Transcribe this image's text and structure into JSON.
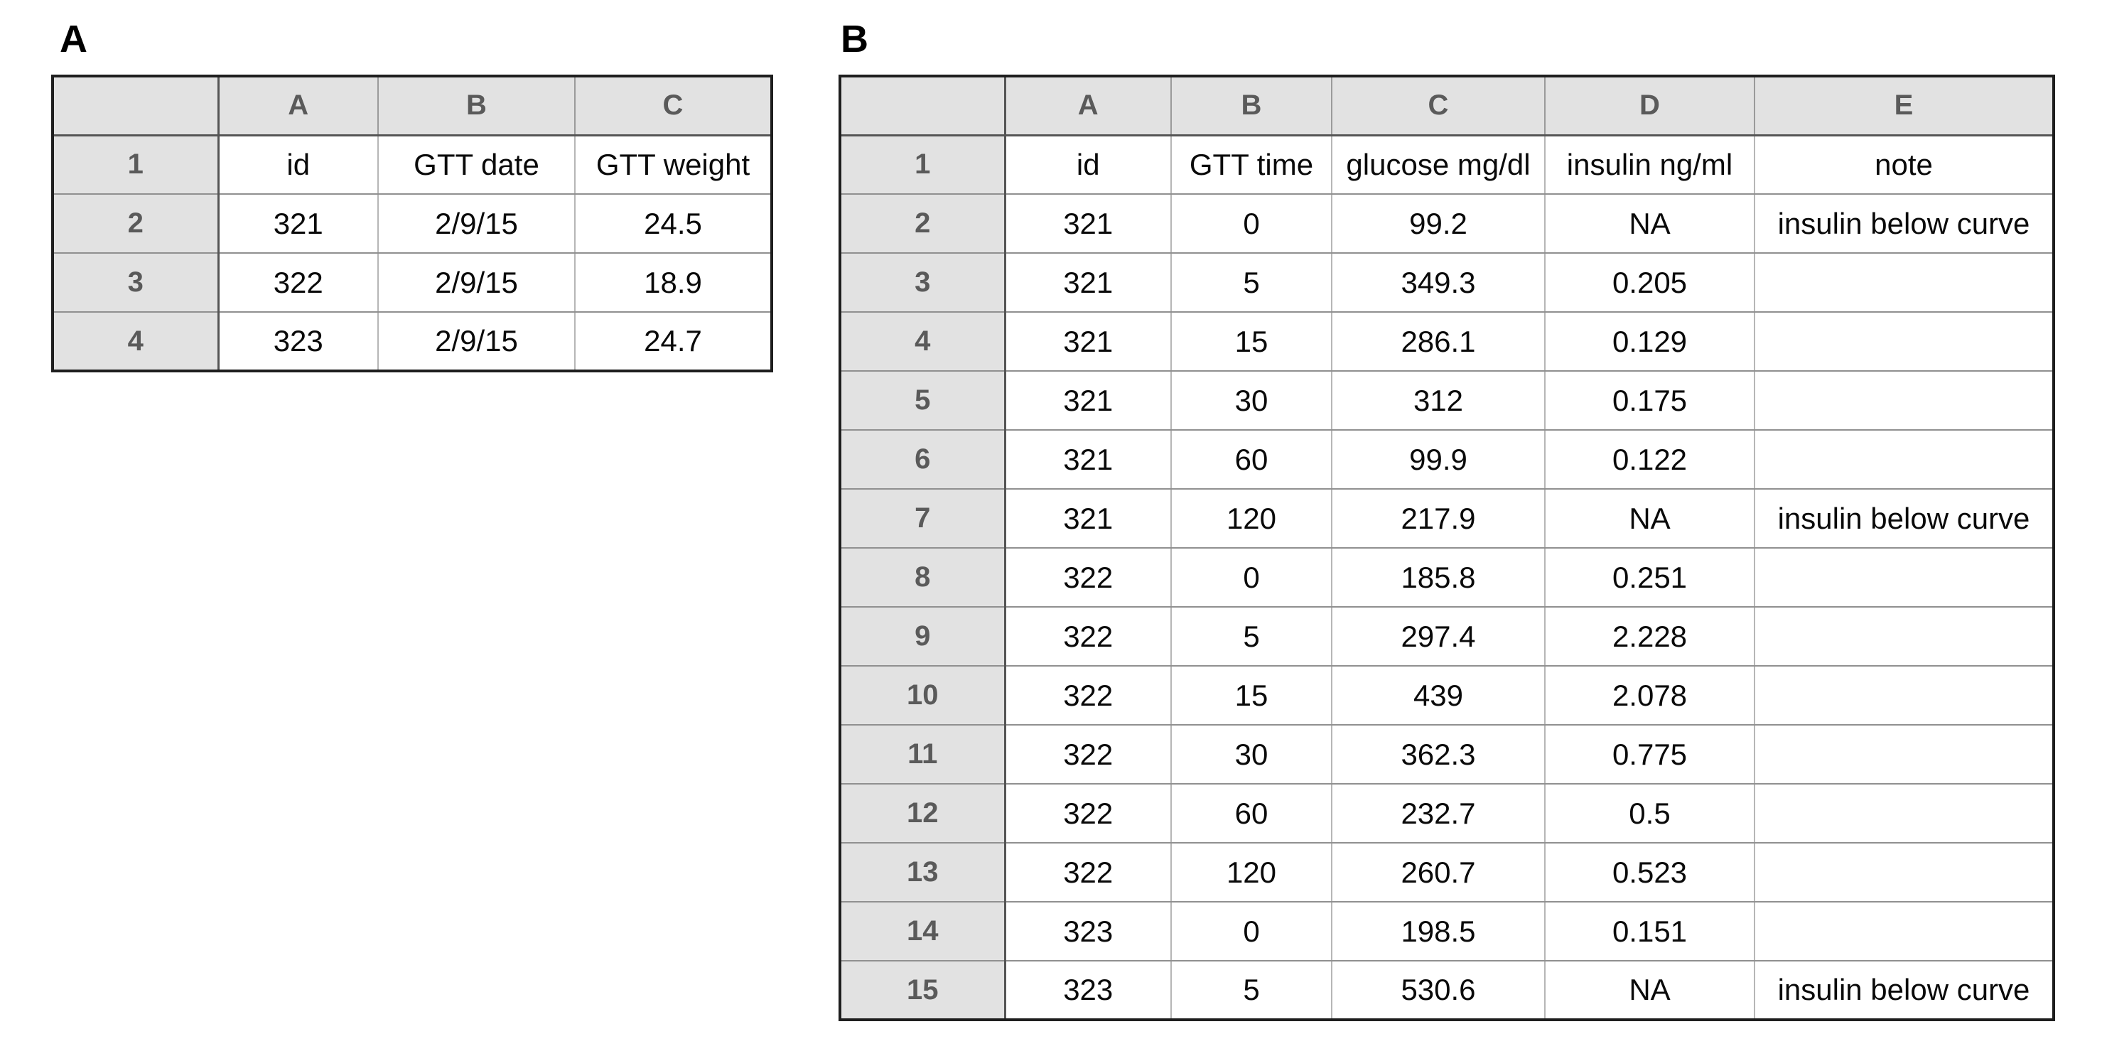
{
  "panels": [
    {
      "label": "A",
      "corner": "",
      "columns": [
        "A",
        "B",
        "C"
      ],
      "rows": [
        {
          "num": "1",
          "cells": [
            "id",
            "GTT date",
            "GTT weight"
          ]
        },
        {
          "num": "2",
          "cells": [
            "321",
            "2/9/15",
            "24.5"
          ]
        },
        {
          "num": "3",
          "cells": [
            "322",
            "2/9/15",
            "18.9"
          ]
        },
        {
          "num": "4",
          "cells": [
            "323",
            "2/9/15",
            "24.7"
          ]
        }
      ]
    },
    {
      "label": "B",
      "corner": "",
      "columns": [
        "A",
        "B",
        "C",
        "D",
        "E"
      ],
      "rows": [
        {
          "num": "1",
          "cells": [
            "id",
            "GTT time",
            "glucose mg/dl",
            "insulin ng/ml",
            "note"
          ]
        },
        {
          "num": "2",
          "cells": [
            "321",
            "0",
            "99.2",
            "NA",
            "insulin below curve"
          ]
        },
        {
          "num": "3",
          "cells": [
            "321",
            "5",
            "349.3",
            "0.205",
            ""
          ]
        },
        {
          "num": "4",
          "cells": [
            "321",
            "15",
            "286.1",
            "0.129",
            ""
          ]
        },
        {
          "num": "5",
          "cells": [
            "321",
            "30",
            "312",
            "0.175",
            ""
          ]
        },
        {
          "num": "6",
          "cells": [
            "321",
            "60",
            "99.9",
            "0.122",
            ""
          ]
        },
        {
          "num": "7",
          "cells": [
            "321",
            "120",
            "217.9",
            "NA",
            "insulin below curve"
          ]
        },
        {
          "num": "8",
          "cells": [
            "322",
            "0",
            "185.8",
            "0.251",
            ""
          ]
        },
        {
          "num": "9",
          "cells": [
            "322",
            "5",
            "297.4",
            "2.228",
            ""
          ]
        },
        {
          "num": "10",
          "cells": [
            "322",
            "15",
            "439",
            "2.078",
            ""
          ]
        },
        {
          "num": "11",
          "cells": [
            "322",
            "30",
            "362.3",
            "0.775",
            ""
          ]
        },
        {
          "num": "12",
          "cells": [
            "322",
            "60",
            "232.7",
            "0.5",
            ""
          ]
        },
        {
          "num": "13",
          "cells": [
            "322",
            "120",
            "260.7",
            "0.523",
            ""
          ]
        },
        {
          "num": "14",
          "cells": [
            "323",
            "0",
            "198.5",
            "0.151",
            ""
          ]
        },
        {
          "num": "15",
          "cells": [
            "323",
            "5",
            "530.6",
            "NA",
            "insulin below curve"
          ]
        }
      ]
    }
  ],
  "colors": {
    "header_fill": "#e2e2e2",
    "outer_border": "#1e1e1e",
    "header_separator": "#555555",
    "grid_horizontal": "#909090",
    "grid_vertical": "#b6b6b6",
    "header_text": "#5a5a5a",
    "cell_text": "#0a0a0a",
    "label_text": "#000000"
  }
}
